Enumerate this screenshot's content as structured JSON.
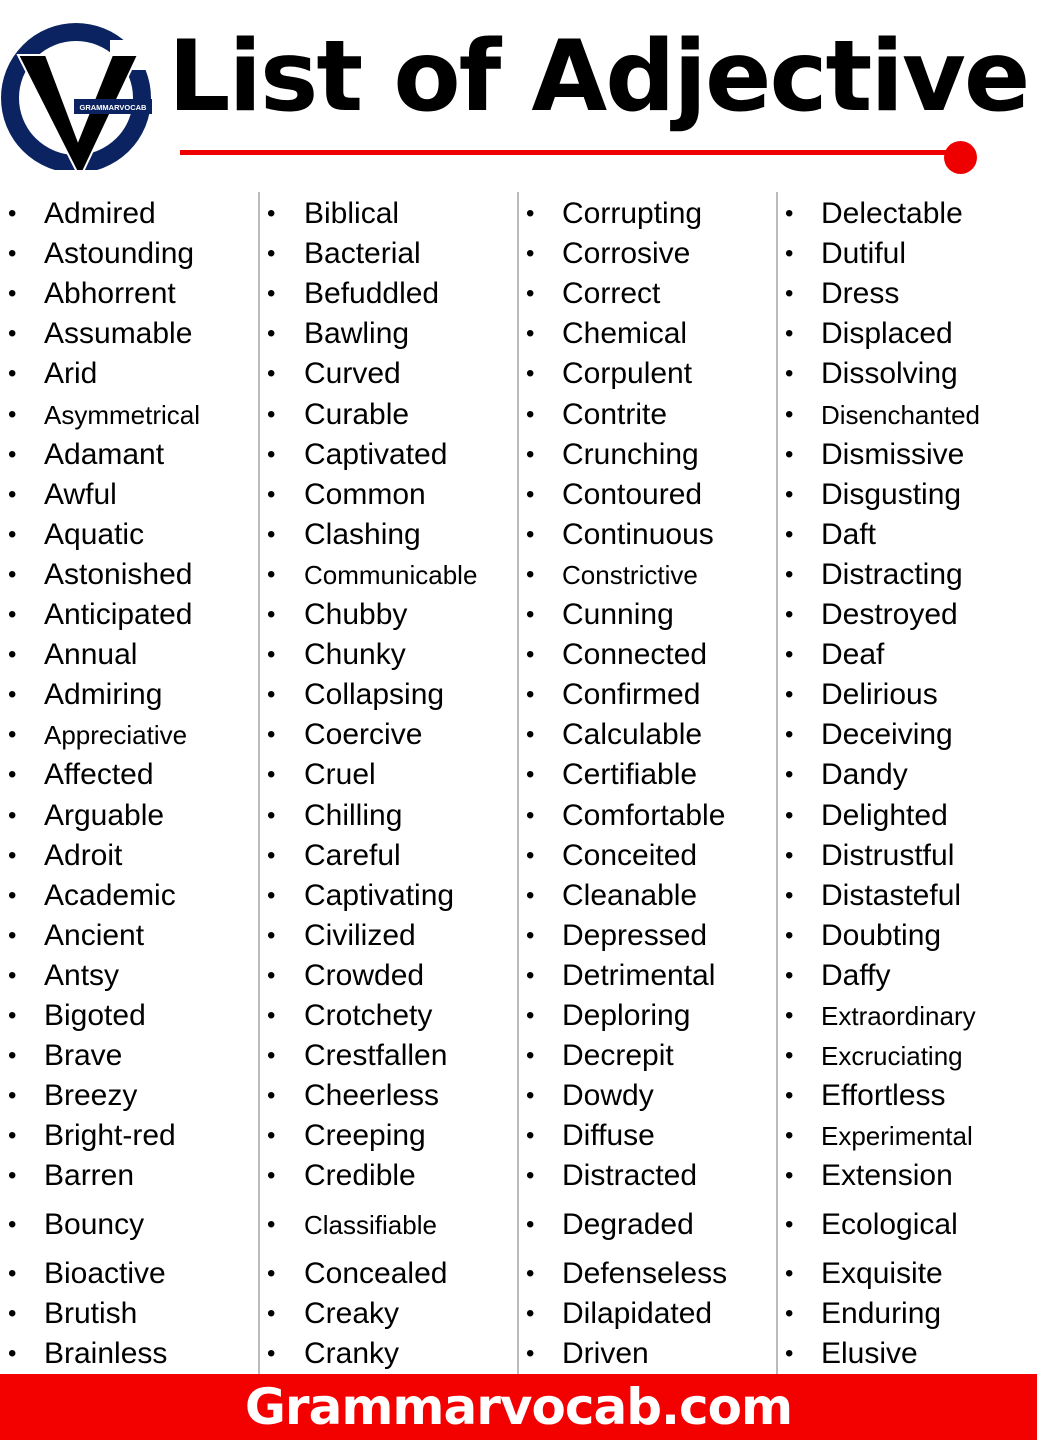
{
  "header": {
    "title": "List of Adjective",
    "logo_text": "GRAMMARVOCAB",
    "logo_icon": "gv-logo-icon"
  },
  "colors": {
    "accent_red": "#f30000",
    "logo_navy": "#0b2461",
    "text": "#000000"
  },
  "columns": [
    [
      "Admired",
      "Astounding",
      "Abhorrent",
      "Assumable",
      "Arid",
      "Asymmetrical",
      "Adamant",
      "Awful",
      "Aquatic",
      "Astonished",
      "Anticipated",
      "Annual",
      "Admiring",
      "Appreciative",
      "Affected",
      "Arguable",
      "Adroit",
      "Academic",
      "Ancient",
      "Antsy",
      "Bigoted",
      "Brave",
      "Breezy",
      "Bright-red",
      "Barren",
      "Bouncy",
      "Bioactive",
      "Brutish",
      "Brainless"
    ],
    [
      "Biblical",
      "Bacterial",
      "Befuddled",
      "Bawling",
      "Curved",
      "Curable",
      "Captivated",
      "Common",
      "Clashing",
      "Communicable",
      "Chubby",
      "Chunky",
      "Collapsing",
      "Coercive",
      "Cruel",
      "Chilling",
      "Careful",
      "Captivating",
      "Civilized",
      "Crowded",
      "Crotchety",
      "Crestfallen",
      "Cheerless",
      "Creeping",
      "Credible",
      "Classifiable",
      "Concealed",
      "Creaky",
      "Cranky"
    ],
    [
      "Corrupting",
      "Corrosive",
      "Correct",
      "Chemical",
      "Corpulent",
      "Contrite",
      "Crunching",
      "Contoured",
      "Continuous",
      "Constrictive",
      "Cunning",
      "Connected",
      "Confirmed",
      "Calculable",
      "Certifiable",
      "Comfortable",
      "Conceited",
      "Cleanable",
      "Depressed",
      "Detrimental",
      "Deploring",
      "Decrepit",
      "Dowdy",
      "Diffuse",
      "Distracted",
      "Degraded",
      "Defenseless",
      "Dilapidated",
      "Driven"
    ],
    [
      "Delectable",
      "Dutiful",
      "Dress",
      "Displaced",
      "Dissolving",
      "Disenchanted",
      "Dismissive",
      "Disgusting",
      "Daft",
      "Distracting",
      "Destroyed",
      "Deaf",
      "Delirious",
      "Deceiving",
      "Dandy",
      "Delighted",
      "Distrustful",
      "Distasteful",
      "Doubting",
      "Daffy",
      "Extraordinary",
      "Excruciating",
      "Effortless",
      "Experimental",
      "Extension",
      "Ecological",
      "Exquisite",
      "Enduring",
      "Elusive"
    ]
  ],
  "footer": {
    "site": "Grammarvocab.com"
  }
}
